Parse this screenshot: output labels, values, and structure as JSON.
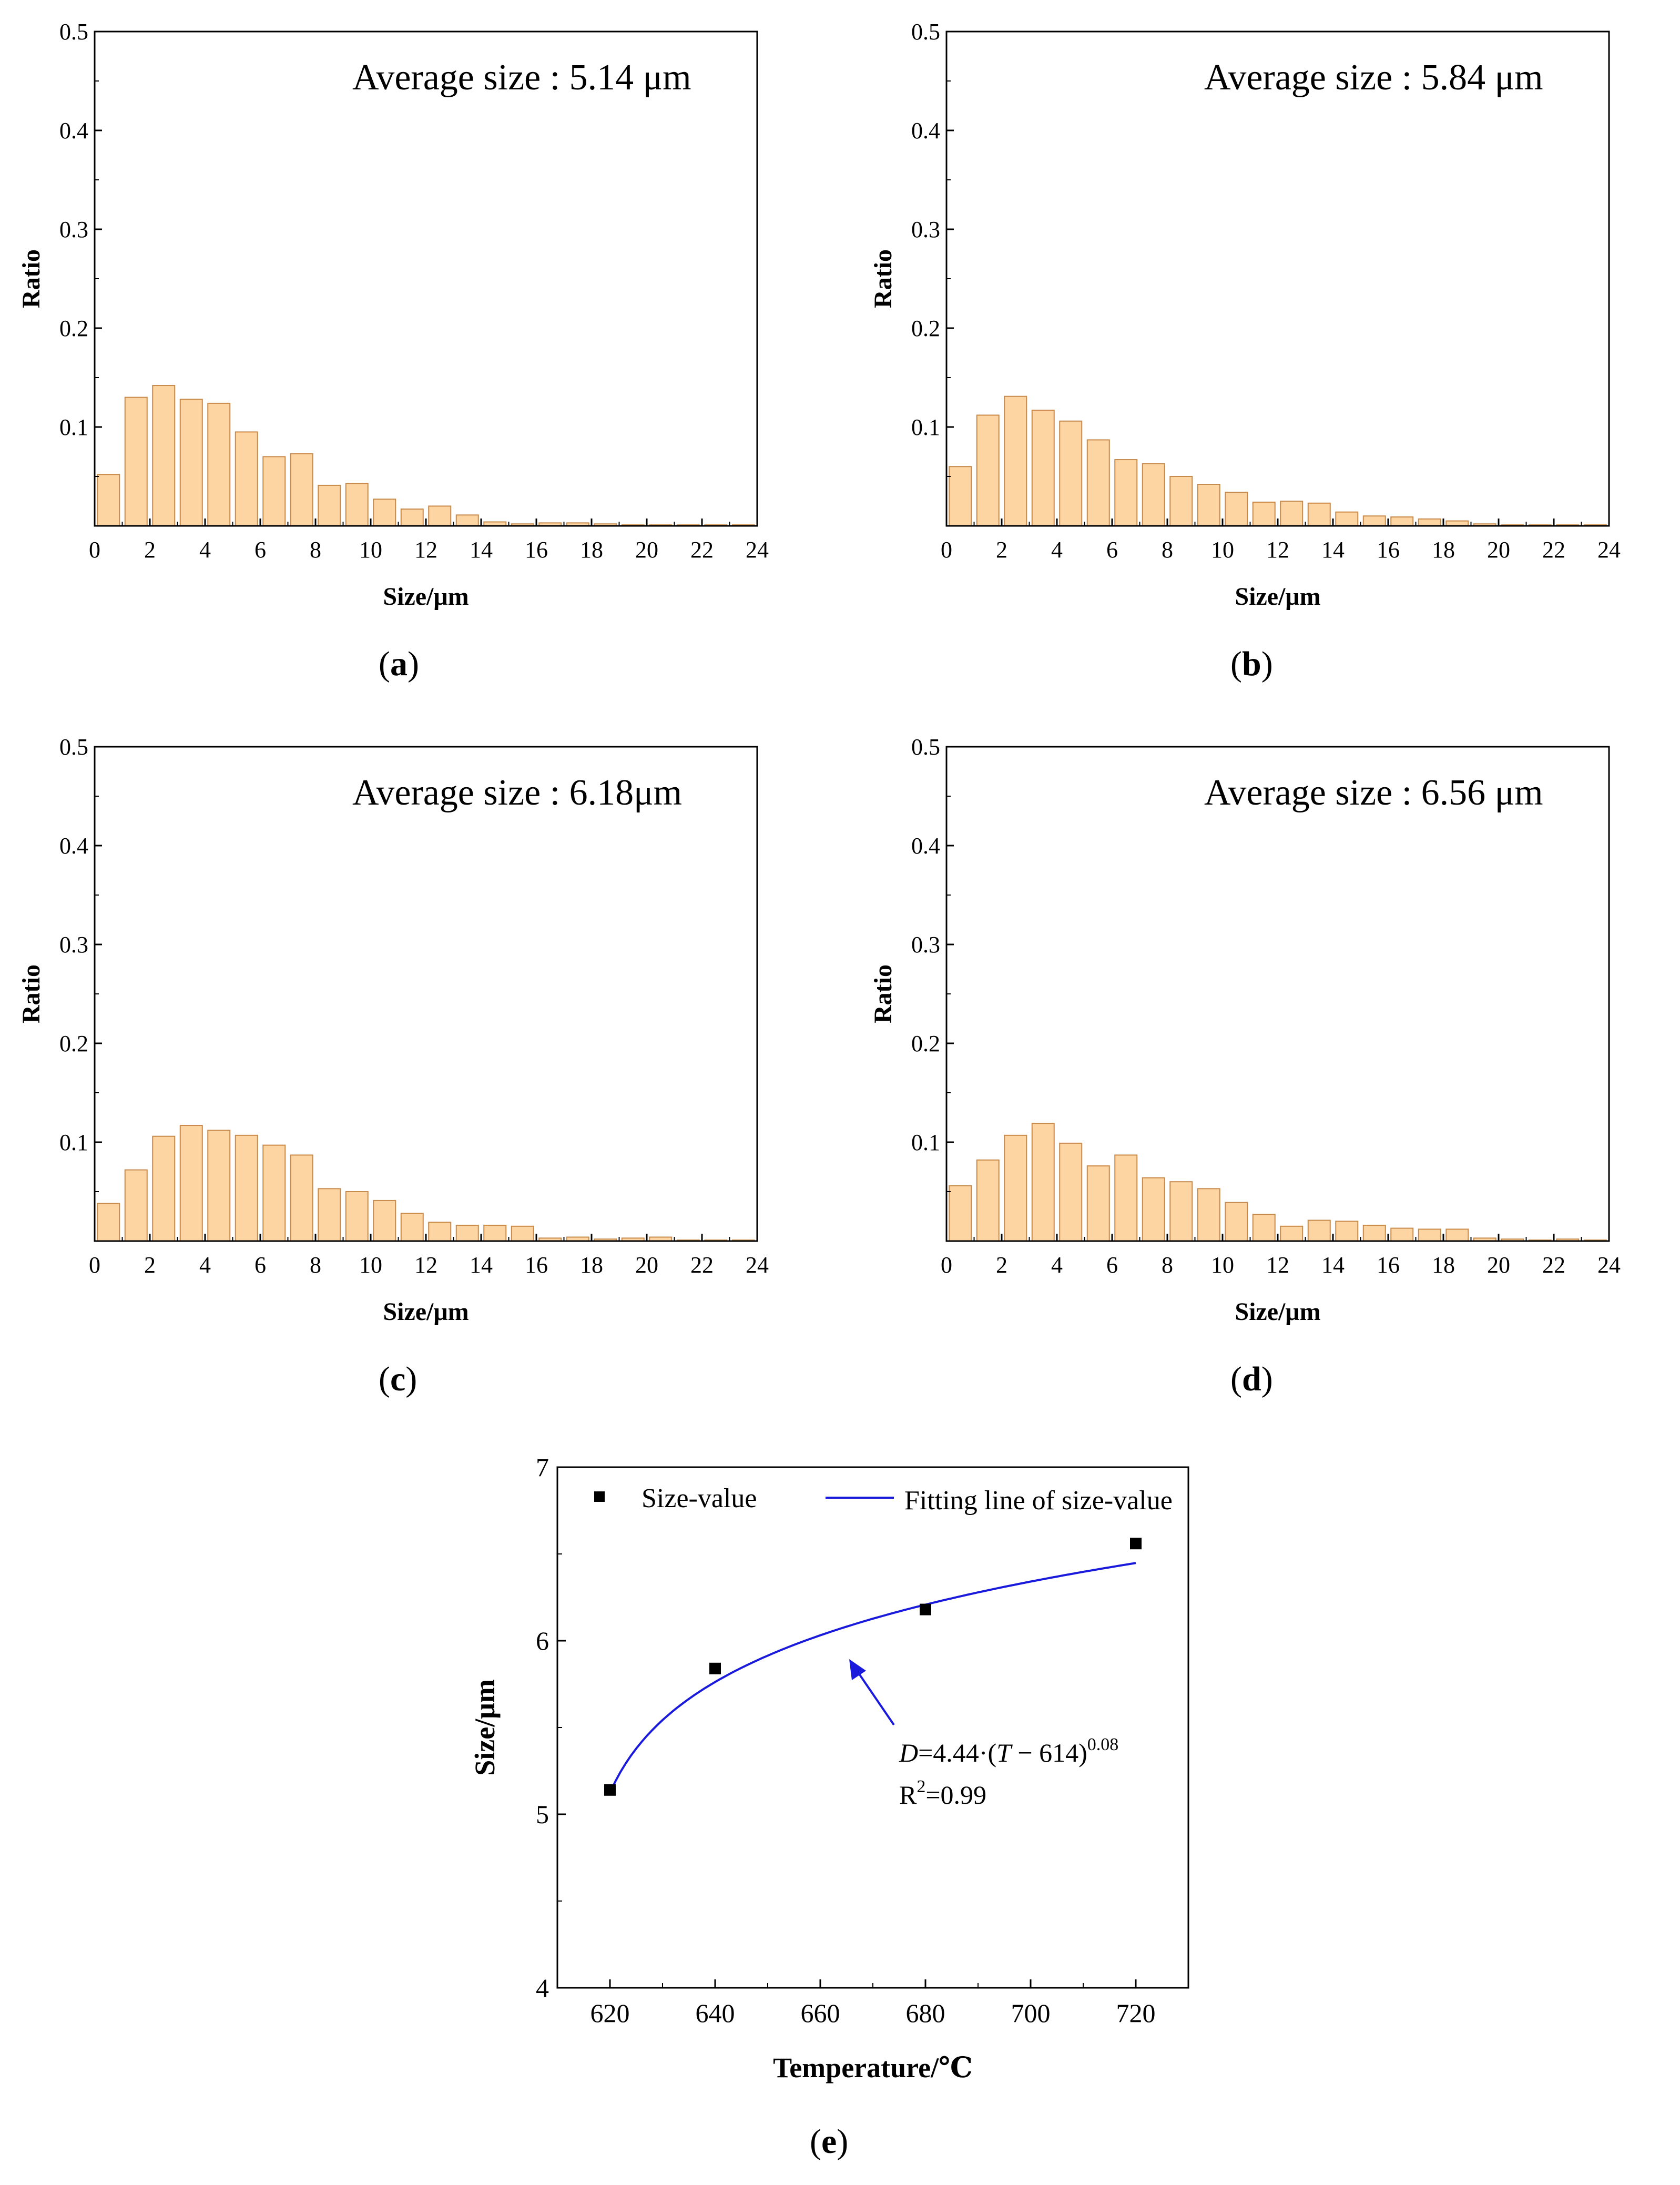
{
  "histograms": [
    {
      "id": "a",
      "caption_open": "(",
      "caption_letter": "a",
      "caption_close": ")",
      "annotation": "Average size : 5.14 μm",
      "ylabel": "Ratio",
      "xlabel": "Size/μm",
      "ytick_labels": [
        "0.1",
        "0.2",
        "0.3",
        "0.4",
        "0.5"
      ],
      "xtick_labels": [
        "0",
        "2",
        "4",
        "6",
        "8",
        "10",
        "12",
        "14",
        "16",
        "18",
        "20",
        "22",
        "24"
      ]
    },
    {
      "id": "b",
      "caption_open": "(",
      "caption_letter": "b",
      "caption_close": ")",
      "annotation": "Average size : 5.84 μm",
      "ylabel": "Ratio",
      "xlabel": "Size/μm",
      "ytick_labels": [
        "0.1",
        "0.2",
        "0.3",
        "0.4",
        "0.5"
      ],
      "xtick_labels": [
        "0",
        "2",
        "4",
        "6",
        "8",
        "10",
        "12",
        "14",
        "16",
        "18",
        "20",
        "22",
        "24"
      ]
    },
    {
      "id": "c",
      "caption_open": "(",
      "caption_letter": "c",
      "caption_close": ")",
      "annotation": "Average size : 6.18μm",
      "ylabel": "Ratio",
      "xlabel": "Size/μm",
      "ytick_labels": [
        "0.1",
        "0.2",
        "0.3",
        "0.4",
        "0.5"
      ],
      "xtick_labels": [
        "0",
        "2",
        "4",
        "6",
        "8",
        "10",
        "12",
        "14",
        "16",
        "18",
        "20",
        "22",
        "24"
      ]
    },
    {
      "id": "d",
      "caption_open": "(",
      "caption_letter": "d",
      "caption_close": ")",
      "annotation": "Average size : 6.56 μm",
      "ylabel": "Ratio",
      "xlabel": "Size/μm",
      "ytick_labels": [
        "0.1",
        "0.2",
        "0.3",
        "0.4",
        "0.5"
      ],
      "xtick_labels": [
        "0",
        "2",
        "4",
        "6",
        "8",
        "10",
        "12",
        "14",
        "16",
        "18",
        "20",
        "22",
        "24"
      ]
    }
  ],
  "scatter_panel": {
    "caption_open": "(",
    "caption_letter": "e",
    "caption_close": ")",
    "ylabel": "Size/μm",
    "xlabel": "Temperature/℃",
    "legend_points": "Size-value",
    "legend_line": "Fitting line of size-value",
    "equation_var": "D",
    "equation_body": "=4.44·(",
    "equation_var2": "T",
    "equation_rest": " − 614)",
    "equation_exp": "0.08",
    "r2_prefix": "R",
    "r2_sup": "2",
    "r2_value": "=0.99",
    "ytick_labels": [
      "4",
      "5",
      "6",
      "7"
    ],
    "xtick_labels": [
      "620",
      "640",
      "660",
      "680",
      "700",
      "720"
    ]
  },
  "colors": {
    "bar_fill": "#fcd5a3",
    "bar_stroke": "#c88a4a",
    "fit_line": "#1a1adc",
    "marker": "#000000",
    "axis": "#000000"
  },
  "chart_data": [
    {
      "type": "bar",
      "panel": "a",
      "x": [
        0.5,
        1.5,
        2.5,
        3.5,
        4.5,
        5.5,
        6.5,
        7.5,
        8.5,
        9.5,
        10.5,
        11.5,
        12.5,
        13.5,
        14.5,
        15.5,
        16.5,
        17.5,
        18.5,
        19.5,
        20.5,
        21.5,
        22.5,
        23.5
      ],
      "values": [
        0.052,
        0.13,
        0.142,
        0.128,
        0.124,
        0.095,
        0.07,
        0.073,
        0.041,
        0.043,
        0.027,
        0.017,
        0.02,
        0.011,
        0.004,
        0.002,
        0.003,
        0.003,
        0.002,
        0.001,
        0.001,
        0.001,
        0.001,
        0.001
      ],
      "xlabel": "Size/μm",
      "ylabel": "Ratio",
      "xlim": [
        0,
        24
      ],
      "ylim": [
        0,
        0.5
      ],
      "grid": false
    },
    {
      "type": "bar",
      "panel": "b",
      "x": [
        0.5,
        1.5,
        2.5,
        3.5,
        4.5,
        5.5,
        6.5,
        7.5,
        8.5,
        9.5,
        10.5,
        11.5,
        12.5,
        13.5,
        14.5,
        15.5,
        16.5,
        17.5,
        18.5,
        19.5,
        20.5,
        21.5,
        22.5,
        23.5
      ],
      "values": [
        0.06,
        0.112,
        0.131,
        0.117,
        0.106,
        0.087,
        0.067,
        0.063,
        0.05,
        0.042,
        0.034,
        0.024,
        0.025,
        0.023,
        0.014,
        0.01,
        0.009,
        0.007,
        0.005,
        0.002,
        0.001,
        0.001,
        0.001,
        0.001
      ],
      "xlabel": "Size/μm",
      "ylabel": "Ratio",
      "xlim": [
        0,
        24
      ],
      "ylim": [
        0,
        0.5
      ],
      "grid": false
    },
    {
      "type": "bar",
      "panel": "c",
      "x": [
        0.5,
        1.5,
        2.5,
        3.5,
        4.5,
        5.5,
        6.5,
        7.5,
        8.5,
        9.5,
        10.5,
        11.5,
        12.5,
        13.5,
        14.5,
        15.5,
        16.5,
        17.5,
        18.5,
        19.5,
        20.5,
        21.5,
        22.5,
        23.5
      ],
      "values": [
        0.038,
        0.072,
        0.106,
        0.117,
        0.112,
        0.107,
        0.097,
        0.087,
        0.053,
        0.05,
        0.041,
        0.028,
        0.019,
        0.016,
        0.016,
        0.015,
        0.003,
        0.004,
        0.002,
        0.003,
        0.004,
        0.001,
        0.001,
        0.001
      ],
      "xlabel": "Size/μm",
      "ylabel": "Ratio",
      "xlim": [
        0,
        24
      ],
      "ylim": [
        0,
        0.5
      ],
      "grid": false
    },
    {
      "type": "bar",
      "panel": "d",
      "x": [
        0.5,
        1.5,
        2.5,
        3.5,
        4.5,
        5.5,
        6.5,
        7.5,
        8.5,
        9.5,
        10.5,
        11.5,
        12.5,
        13.5,
        14.5,
        15.5,
        16.5,
        17.5,
        18.5,
        19.5,
        20.5,
        21.5,
        22.5,
        23.5
      ],
      "values": [
        0.056,
        0.082,
        0.107,
        0.119,
        0.099,
        0.076,
        0.087,
        0.064,
        0.06,
        0.053,
        0.039,
        0.027,
        0.015,
        0.021,
        0.02,
        0.016,
        0.013,
        0.012,
        0.012,
        0.003,
        0.002,
        0.001,
        0.002,
        0.001
      ],
      "xlabel": "Size/μm",
      "ylabel": "Ratio",
      "xlim": [
        0,
        24
      ],
      "ylim": [
        0,
        0.5
      ],
      "grid": false
    },
    {
      "type": "scatter",
      "panel": "e",
      "xlabel": "Temperature/℃",
      "ylabel": "Size/μm",
      "xlim": [
        610,
        730
      ],
      "ylim": [
        4,
        7
      ],
      "grid": false,
      "legend": "top",
      "series": [
        {
          "name": "Size-value",
          "x": [
            620,
            640,
            680,
            720
          ],
          "y": [
            5.14,
            5.84,
            6.18,
            6.56
          ]
        },
        {
          "name": "Fitting line of size-value",
          "type": "line",
          "formula": "D=4.44·(T − 614)^0.08",
          "x_range": [
            620,
            720
          ]
        }
      ]
    }
  ]
}
